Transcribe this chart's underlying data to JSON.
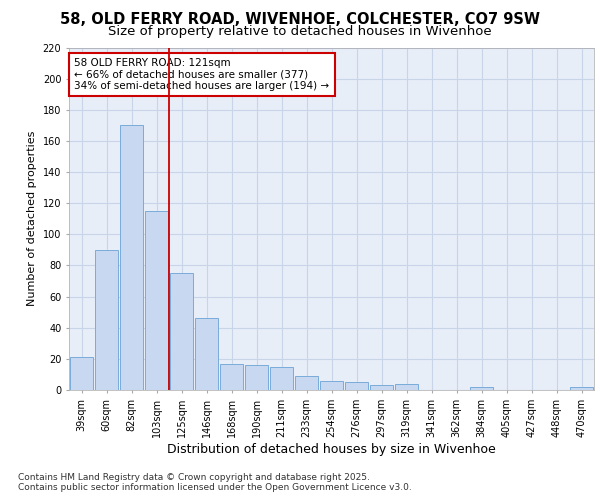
{
  "title1": "58, OLD FERRY ROAD, WIVENHOE, COLCHESTER, CO7 9SW",
  "title2": "Size of property relative to detached houses in Wivenhoe",
  "xlabel": "Distribution of detached houses by size in Wivenhoe",
  "ylabel": "Number of detached properties",
  "bar_labels": [
    "39sqm",
    "60sqm",
    "82sqm",
    "103sqm",
    "125sqm",
    "146sqm",
    "168sqm",
    "190sqm",
    "211sqm",
    "233sqm",
    "254sqm",
    "276sqm",
    "297sqm",
    "319sqm",
    "341sqm",
    "362sqm",
    "384sqm",
    "405sqm",
    "427sqm",
    "448sqm",
    "470sqm"
  ],
  "bar_values": [
    21,
    90,
    170,
    115,
    75,
    46,
    17,
    16,
    15,
    9,
    6,
    5,
    3,
    4,
    0,
    0,
    2,
    0,
    0,
    0,
    2
  ],
  "bar_color": "#c8d8f0",
  "bar_edge_color": "#7aabda",
  "grid_color": "#c8d4e8",
  "background_color": "#ffffff",
  "plot_bg_color": "#e8eef8",
  "vline_x_index": 4,
  "vline_color": "#cc0000",
  "annotation_text": "58 OLD FERRY ROAD: 121sqm\n← 66% of detached houses are smaller (377)\n34% of semi-detached houses are larger (194) →",
  "annotation_box_color": "#ffffff",
  "annotation_box_edge": "#cc0000",
  "ylim": [
    0,
    220
  ],
  "yticks": [
    0,
    20,
    40,
    60,
    80,
    100,
    120,
    140,
    160,
    180,
    200,
    220
  ],
  "footnote": "Contains HM Land Registry data © Crown copyright and database right 2025.\nContains public sector information licensed under the Open Government Licence v3.0.",
  "title1_fontsize": 10.5,
  "title2_fontsize": 9.5,
  "xlabel_fontsize": 9,
  "ylabel_fontsize": 8,
  "tick_fontsize": 7,
  "annotation_fontsize": 7.5,
  "footnote_fontsize": 6.5
}
